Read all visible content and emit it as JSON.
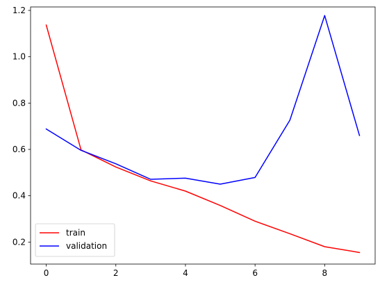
{
  "chart_data": {
    "type": "line",
    "title": "",
    "xlabel": "",
    "ylabel": "",
    "x": [
      0,
      1,
      2,
      3,
      4,
      5,
      6,
      7,
      8,
      9
    ],
    "xlim": [
      -0.45,
      9.45
    ],
    "ylim": [
      0.105,
      1.215
    ],
    "xticks": [
      0,
      2,
      4,
      6,
      8
    ],
    "yticks": [
      0.2,
      0.4,
      0.6,
      0.8,
      1.0,
      1.2
    ],
    "xtick_labels": [
      "0",
      "2",
      "4",
      "6",
      "8"
    ],
    "ytick_labels": [
      "0.2",
      "0.4",
      "0.6",
      "0.8",
      "1.0",
      "1.2"
    ],
    "grid": false,
    "legend_position": "lower-left",
    "series": [
      {
        "name": "train",
        "color": "#ff0000",
        "values": [
          1.137,
          0.598,
          0.524,
          0.464,
          0.42,
          0.358,
          0.29,
          0.236,
          0.18,
          0.155
        ]
      },
      {
        "name": "validation",
        "color": "#0000ff",
        "values": [
          0.688,
          0.596,
          0.538,
          0.471,
          0.476,
          0.45,
          0.479,
          0.726,
          1.178,
          0.66
        ]
      }
    ]
  }
}
